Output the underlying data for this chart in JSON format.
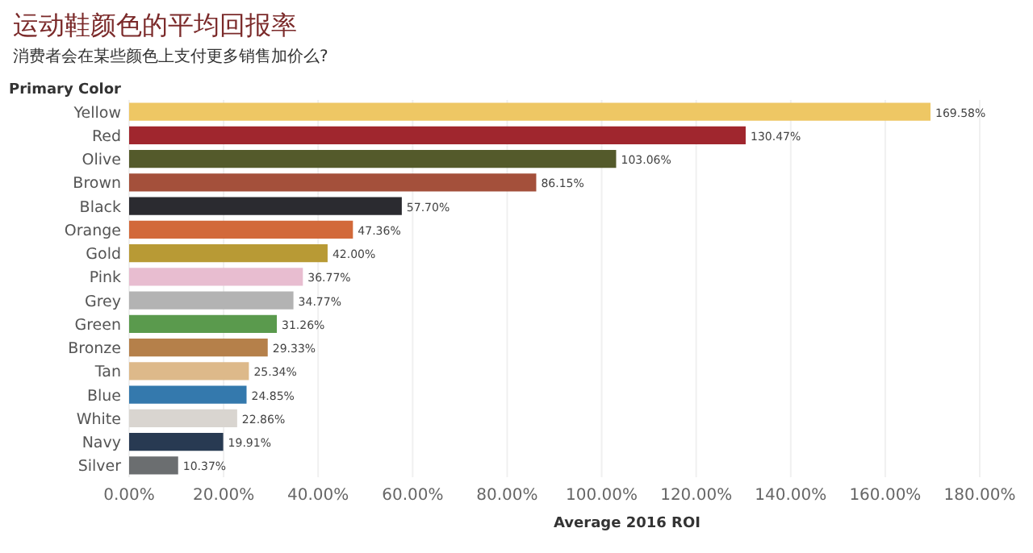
{
  "chart_data": {
    "type": "bar",
    "orientation": "horizontal",
    "title": "运动鞋颜色的平均回报率",
    "subtitle": "消费者会在某些颜色上支付更多销售加价么?",
    "ylabel": "Primary Color",
    "xlabel": "Average 2016 ROI",
    "categories": [
      "Yellow",
      "Red",
      "Olive",
      "Brown",
      "Black",
      "Orange",
      "Gold",
      "Pink",
      "Grey",
      "Green",
      "Bronze",
      "Tan",
      "Blue",
      "White",
      "Navy",
      "Silver"
    ],
    "values": [
      169.58,
      130.47,
      103.06,
      86.15,
      57.7,
      47.36,
      42.0,
      36.77,
      34.77,
      31.26,
      29.33,
      25.34,
      24.85,
      22.86,
      19.91,
      10.37
    ],
    "colors": [
      "#eec764",
      "#a0262e",
      "#545a2b",
      "#a4503b",
      "#2b2b30",
      "#d2693a",
      "#b89a35",
      "#e8bdd0",
      "#b3b3b3",
      "#5a9a4d",
      "#b5804a",
      "#ddb98a",
      "#3479ad",
      "#d9d5d0",
      "#283a52",
      "#6b6e70"
    ],
    "value_labels": [
      "169.58%",
      "130.47%",
      "103.06%",
      "86.15%",
      "57.70%",
      "47.36%",
      "42.00%",
      "36.77%",
      "34.77%",
      "31.26%",
      "29.33%",
      "25.34%",
      "24.85%",
      "22.86%",
      "19.91%",
      "10.37%"
    ],
    "xlim": [
      0,
      180
    ],
    "xticks": [
      {
        "value": 0,
        "label": "0.00%"
      },
      {
        "value": 20,
        "label": "20.00%"
      },
      {
        "value": 40,
        "label": "40.00%"
      },
      {
        "value": 60,
        "label": "60.00%"
      },
      {
        "value": 80,
        "label": "80.00%"
      },
      {
        "value": 100,
        "label": "100.00%"
      },
      {
        "value": 120,
        "label": "120.00%"
      },
      {
        "value": 140,
        "label": "140.00%"
      },
      {
        "value": 160,
        "label": "160.00%"
      },
      {
        "value": 180,
        "label": "180.00%"
      }
    ],
    "grid": "x"
  }
}
